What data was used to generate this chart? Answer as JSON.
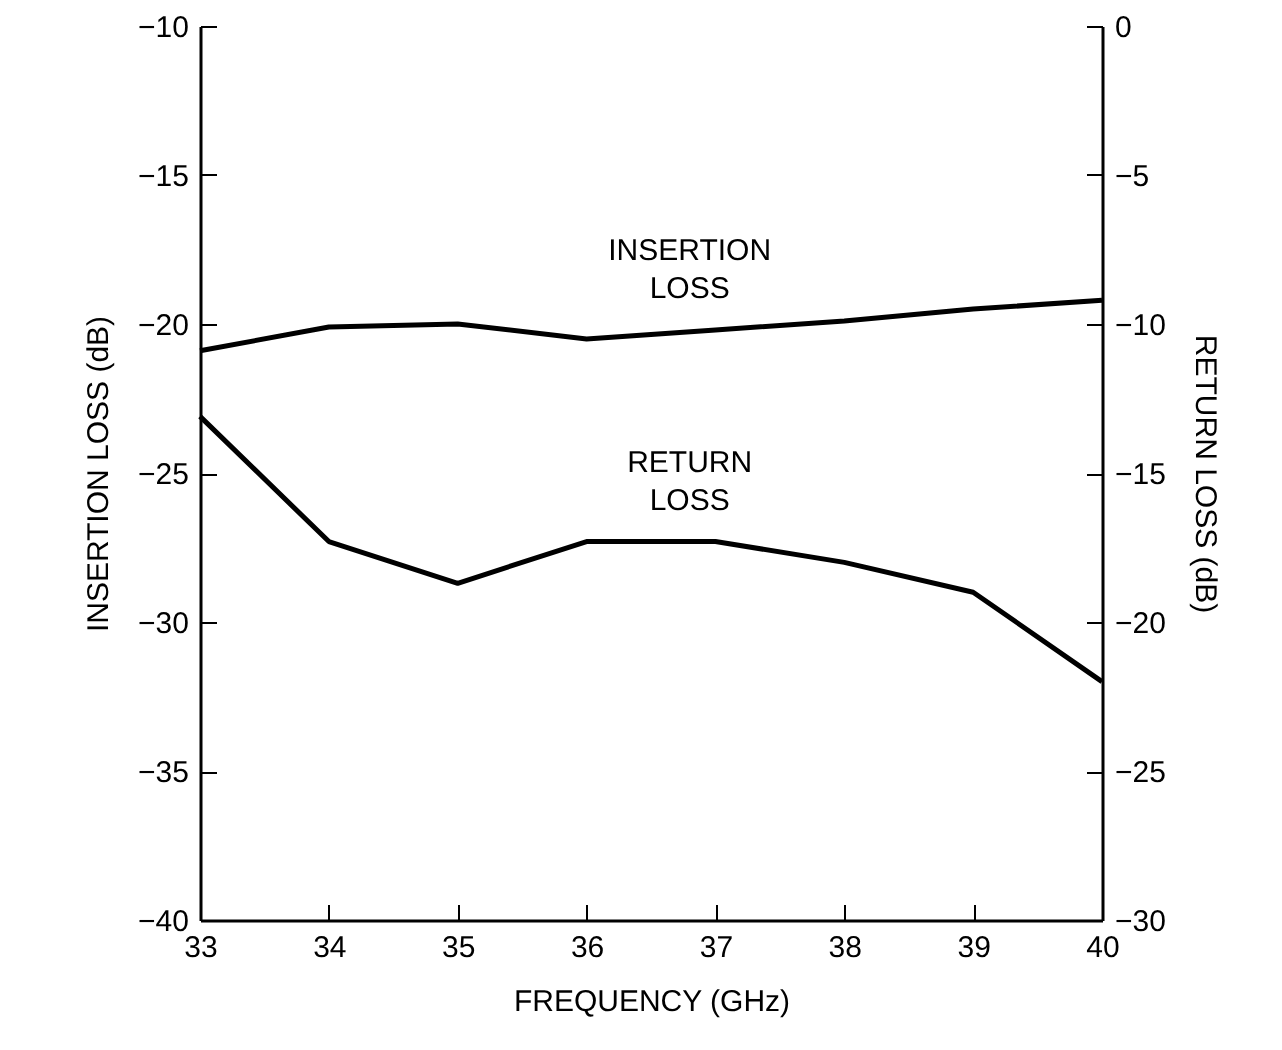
{
  "chart_data": {
    "type": "line",
    "xlabel": "FREQUENCY (GHz)",
    "ylabel": "INSERTION LOSS (dB)",
    "y2label": "RETURN LOSS (dB)",
    "x": [
      33,
      34,
      35,
      36,
      37,
      38,
      39,
      40
    ],
    "xlim": [
      33,
      40
    ],
    "xticks": [
      33,
      34,
      35,
      36,
      37,
      38,
      39,
      40
    ],
    "ylim": [
      -40,
      -10
    ],
    "yticks": [
      -40,
      -35,
      -30,
      -25,
      -20,
      -15,
      -10
    ],
    "y2lim": [
      -30,
      0
    ],
    "y2ticks": [
      -30,
      -25,
      -20,
      -15,
      -10,
      -5,
      0
    ],
    "grid": false,
    "marker": "none",
    "line_style": "solid",
    "series": [
      {
        "name": "INSERTION LOSS",
        "color": "#000000",
        "values": [
          -20.9,
          -20.1,
          -20.0,
          -20.5,
          -20.2,
          -19.9,
          -19.5,
          -19.2
        ]
      },
      {
        "name": "RETURN LOSS",
        "color": "#000000",
        "axis": "y2",
        "values": [
          -13.1,
          -17.3,
          -18.7,
          -17.3,
          -17.3,
          -18.0,
          -19.0,
          -22.0
        ]
      }
    ]
  }
}
